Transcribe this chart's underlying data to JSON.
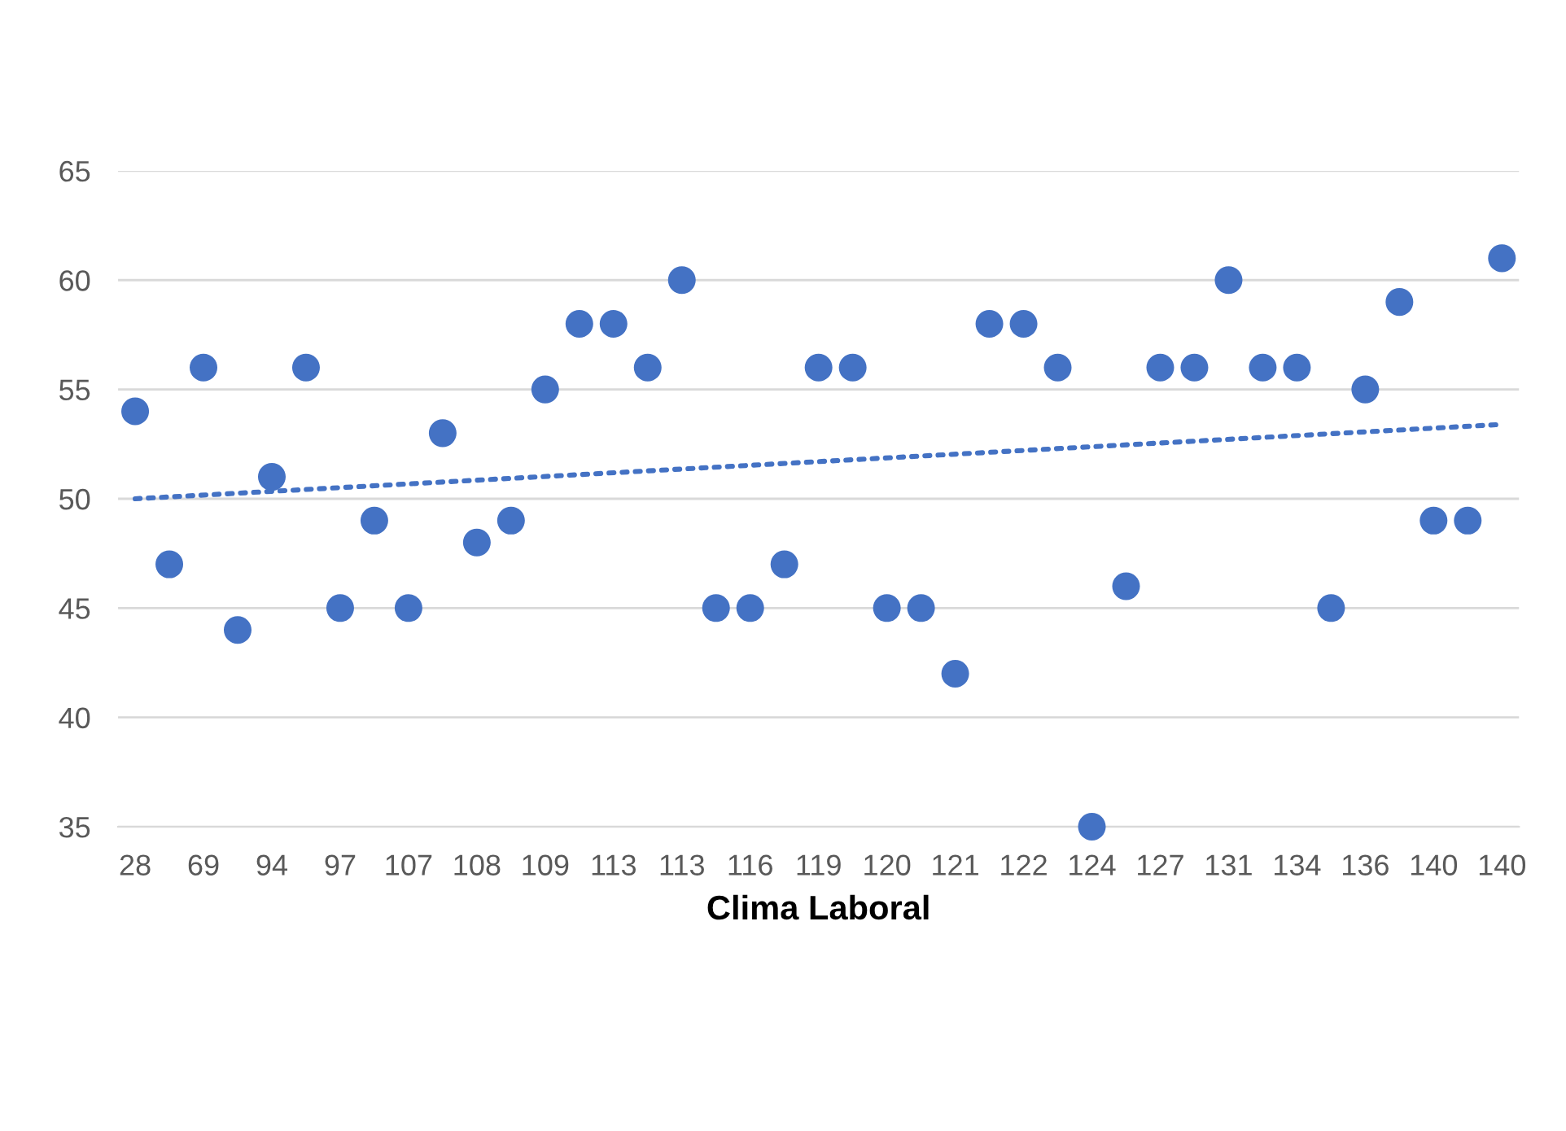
{
  "chart_data": {
    "type": "scatter",
    "xlabel": "Clima Laboral",
    "categories": [
      "28",
      null,
      "69",
      null,
      "94",
      null,
      "97",
      null,
      "107",
      null,
      "108",
      null,
      "109",
      null,
      "113",
      null,
      "113",
      null,
      "116",
      null,
      "119",
      null,
      "120",
      null,
      "121",
      null,
      "122",
      null,
      "124",
      null,
      "127",
      null,
      "131",
      null,
      "134",
      null,
      "136",
      null,
      "140",
      null,
      "140"
    ],
    "series": [
      {
        "type": "scatter",
        "color": "#4472c4",
        "marker": "circle",
        "values": [
          54,
          47,
          56,
          44,
          51,
          56,
          45,
          49,
          45,
          53,
          48,
          49,
          55,
          58,
          58,
          56,
          60,
          45,
          45,
          47,
          56,
          56,
          45,
          45,
          42,
          58,
          58,
          56,
          35,
          46,
          56,
          56,
          60,
          56,
          56,
          45,
          55,
          59,
          49,
          49,
          61
        ]
      },
      {
        "type": "line",
        "color": "#4472c4",
        "line_style": "dotted",
        "values": [
          50,
          null,
          null,
          null,
          null,
          null,
          null,
          null,
          null,
          null,
          null,
          null,
          null,
          null,
          null,
          null,
          null,
          null,
          null,
          null,
          null,
          null,
          null,
          null,
          null,
          null,
          null,
          null,
          null,
          null,
          null,
          null,
          null,
          null,
          null,
          null,
          null,
          null,
          null,
          null,
          53.4
        ]
      }
    ],
    "ylim": [
      35,
      65
    ],
    "yticks": [
      35,
      40,
      45,
      50,
      55,
      60,
      65
    ],
    "grid": "y"
  }
}
